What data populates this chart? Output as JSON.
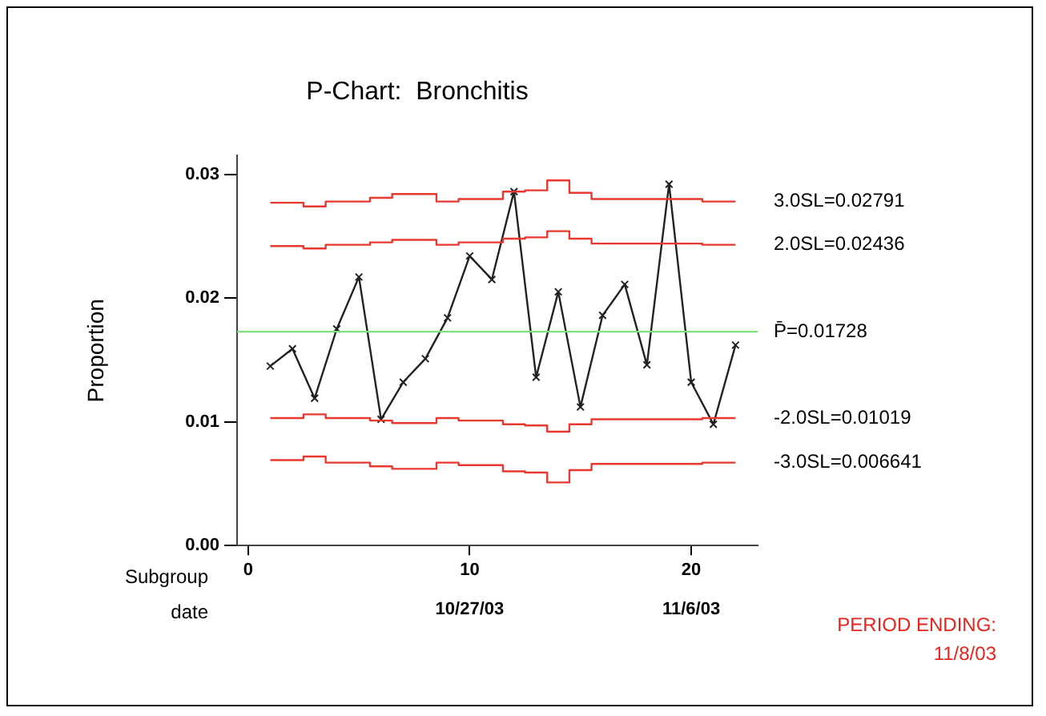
{
  "chart_data": {
    "type": "line",
    "title": "P-Chart:  Bronchitis",
    "xlabel": "Subgroup",
    "x2label": "date",
    "ylabel": "Proportion",
    "x": [
      1,
      2,
      3,
      4,
      5,
      6,
      7,
      8,
      9,
      10,
      11,
      12,
      13,
      14,
      15,
      16,
      17,
      18,
      19,
      20,
      21,
      22
    ],
    "xlim": [
      -0.5,
      23
    ],
    "xticks": [
      0,
      10,
      20
    ],
    "x2lim": [
      "2003-10-16T12:00",
      "2003-11-09T00:00"
    ],
    "x2ticks": [
      {
        "value": "2003-10-27",
        "label": "10/27/03"
      },
      {
        "value": "2003-11-06",
        "label": "11/6/03"
      }
    ],
    "ylim": [
      0,
      0.0315
    ],
    "yticks": [
      {
        "value": 0,
        "label": "0.00"
      },
      {
        "value": 0.01,
        "label": "0.01"
      },
      {
        "value": 0.02,
        "label": "0.02"
      },
      {
        "value": 0.03,
        "label": "0.03"
      }
    ],
    "grid": false,
    "legend": false,
    "series": [
      {
        "type": "step",
        "name": "3.0SL=0.02791",
        "color": "#e8382f",
        "marker": "none",
        "values": [
          0.0277,
          0.0277,
          0.0274,
          0.0278,
          0.0278,
          0.0281,
          0.0284,
          0.0284,
          0.0278,
          0.028,
          0.028,
          0.0286,
          0.0287,
          0.0295,
          0.0285,
          0.028,
          0.028,
          0.028,
          0.028,
          0.028,
          0.0278,
          0.0278
        ]
      },
      {
        "type": "step",
        "name": "2.0SL=0.02436",
        "color": "#e8382f",
        "marker": "none",
        "values": [
          0.0242,
          0.0242,
          0.024,
          0.0243,
          0.0243,
          0.0245,
          0.0247,
          0.0247,
          0.0243,
          0.0245,
          0.0245,
          0.0248,
          0.0249,
          0.0254,
          0.0248,
          0.0244,
          0.0244,
          0.0244,
          0.0244,
          0.0244,
          0.0243,
          0.0243
        ]
      },
      {
        "type": "step",
        "name": "-2.0SL=0.01019",
        "color": "#e8382f",
        "marker": "none",
        "values": [
          0.0103,
          0.0103,
          0.0106,
          0.0103,
          0.0103,
          0.0101,
          0.0099,
          0.0099,
          0.0103,
          0.0101,
          0.0101,
          0.0098,
          0.0097,
          0.0092,
          0.0098,
          0.0102,
          0.0102,
          0.0102,
          0.0102,
          0.0102,
          0.0103,
          0.0103
        ]
      },
      {
        "type": "step",
        "name": "-3.0SL=0.006641",
        "color": "#e8382f",
        "marker": "none",
        "values": [
          0.0069,
          0.0069,
          0.0072,
          0.0067,
          0.0067,
          0.0064,
          0.0062,
          0.0062,
          0.0067,
          0.0065,
          0.0065,
          0.006,
          0.0059,
          0.0051,
          0.0061,
          0.0066,
          0.0066,
          0.0066,
          0.0066,
          0.0066,
          0.0067,
          0.0067
        ]
      },
      {
        "type": "line",
        "color": "#222222",
        "marker": "cross",
        "values": [
          0.0145,
          0.0159,
          0.0119,
          0.0175,
          0.0217,
          0.0102,
          0.0132,
          0.0151,
          0.0184,
          0.0234,
          0.0215,
          0.0286,
          0.0136,
          0.0205,
          0.0112,
          0.0186,
          0.0211,
          0.0146,
          0.0292,
          0.0132,
          0.0098,
          0.0162
        ]
      }
    ],
    "ref_lines": [
      {
        "axis": "y",
        "value": 0.01728,
        "label": "P̄=0.01728",
        "color": "#7fe07f"
      }
    ],
    "annotations": [
      "PERIOD ENDING:",
      "11/8/03"
    ]
  }
}
